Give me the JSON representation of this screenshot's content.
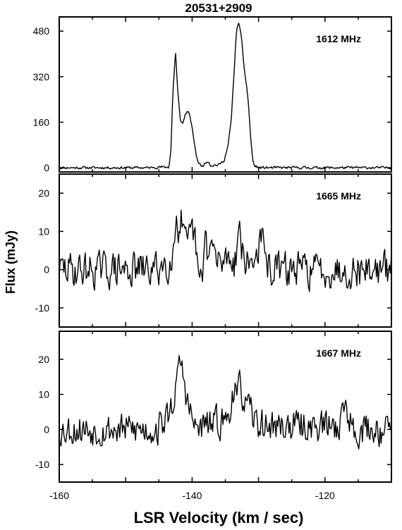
{
  "chart_data": {
    "type": "line",
    "title": "20531+2909",
    "xlabel": "LSR  Velocity  (km / sec)",
    "ylabel": "Flux  (mJy)",
    "xlim": [
      -160,
      -110
    ],
    "x_ticks": [
      "-160",
      "-140",
      "-120"
    ],
    "x_tick_values": [
      -160,
      -140,
      -120
    ],
    "panels": [
      {
        "name": "1612 MHz",
        "ylim": [
          -15,
          530
        ],
        "y_ticks": [
          "0",
          "160",
          "320",
          "480"
        ],
        "y_tick_values": [
          0,
          160,
          320,
          480
        ],
        "peaks": [
          [
            -146,
            2
          ],
          [
            -143.5,
            2
          ],
          [
            -143.2,
            60
          ],
          [
            -142.9,
            260
          ],
          [
            -142.5,
            410
          ],
          [
            -142.2,
            280
          ],
          [
            -141.8,
            170
          ],
          [
            -141.4,
            155
          ],
          [
            -141.0,
            190
          ],
          [
            -140.6,
            200
          ],
          [
            -140.2,
            165
          ],
          [
            -139.8,
            110
          ],
          [
            -139.4,
            45
          ],
          [
            -139.0,
            15
          ],
          [
            -138.5,
            5
          ],
          [
            -137.6,
            25
          ],
          [
            -137.2,
            8
          ],
          [
            -136,
            10
          ],
          [
            -135.2,
            25
          ],
          [
            -134.6,
            75
          ],
          [
            -134.1,
            170
          ],
          [
            -133.7,
            330
          ],
          [
            -133.3,
            490
          ],
          [
            -133.0,
            505
          ],
          [
            -132.6,
            470
          ],
          [
            -132.2,
            350
          ],
          [
            -131.8,
            290
          ],
          [
            -131.5,
            220
          ],
          [
            -131.2,
            110
          ],
          [
            -130.9,
            30
          ],
          [
            -130.6,
            5
          ],
          [
            -130,
            2
          ]
        ],
        "noise_seed": 11,
        "noise_amp": 2.5,
        "noise_step": 0.12
      },
      {
        "name": "1665 MHz",
        "ylim": [
          -15,
          25
        ],
        "y_ticks": [
          "-10",
          "0",
          "10",
          "20"
        ],
        "y_tick_values": [
          -10,
          0,
          10,
          20
        ],
        "peaks": [
          [
            -145,
            1
          ],
          [
            -143.5,
            2
          ],
          [
            -143.0,
            4
          ],
          [
            -142.6,
            8
          ],
          [
            -142.3,
            17
          ],
          [
            -142.0,
            9
          ],
          [
            -141.6,
            13
          ],
          [
            -141.2,
            7
          ],
          [
            -140.7,
            5
          ],
          [
            -140.2,
            9
          ],
          [
            -139.8,
            10
          ],
          [
            -139.4,
            5
          ],
          [
            -139.0,
            -3
          ],
          [
            -138.6,
            -4
          ],
          [
            -138.0,
            9
          ],
          [
            -137.5,
            3
          ],
          [
            -137.0,
            7
          ],
          [
            -136.2,
            1
          ],
          [
            -135.0,
            3
          ],
          [
            -134.2,
            4
          ],
          [
            -133.6,
            2
          ],
          [
            -133.2,
            7
          ],
          [
            -132.8,
            12
          ],
          [
            -132.4,
            4
          ],
          [
            -131.6,
            1
          ],
          [
            -130.5,
            3
          ],
          [
            -129.6,
            9
          ],
          [
            -129.0,
            2
          ],
          [
            -128,
            0
          ]
        ],
        "noise_seed": 29,
        "noise_amp": 2.6,
        "noise_step": 0.14
      },
      {
        "name": "1667 MHz",
        "ylim": [
          -15,
          28
        ],
        "y_ticks": [
          "-10",
          "0",
          "10",
          "20"
        ],
        "y_tick_values": [
          -10,
          0,
          10,
          20
        ],
        "peaks": [
          [
            -145,
            1
          ],
          [
            -143.8,
            3
          ],
          [
            -143.2,
            6
          ],
          [
            -142.8,
            9
          ],
          [
            -142.5,
            12
          ],
          [
            -142.1,
            14
          ],
          [
            -141.8,
            20
          ],
          [
            -141.5,
            17
          ],
          [
            -141.1,
            12
          ],
          [
            -140.7,
            8
          ],
          [
            -140.2,
            4
          ],
          [
            -139.5,
            0
          ],
          [
            -138,
            1
          ],
          [
            -136,
            2
          ],
          [
            -134.6,
            3
          ],
          [
            -134.0,
            10
          ],
          [
            -133.6,
            12
          ],
          [
            -133.2,
            7
          ],
          [
            -132.8,
            13
          ],
          [
            -132.4,
            10
          ],
          [
            -132.0,
            7
          ],
          [
            -131.4,
            5
          ],
          [
            -130.4,
            2
          ],
          [
            -129,
            1
          ],
          [
            -118.0,
            1
          ],
          [
            -117.2,
            5
          ],
          [
            -116.9,
            9
          ],
          [
            -116.5,
            4
          ],
          [
            -116,
            1
          ]
        ],
        "noise_seed": 53,
        "noise_amp": 2.6,
        "noise_step": 0.14
      }
    ]
  }
}
